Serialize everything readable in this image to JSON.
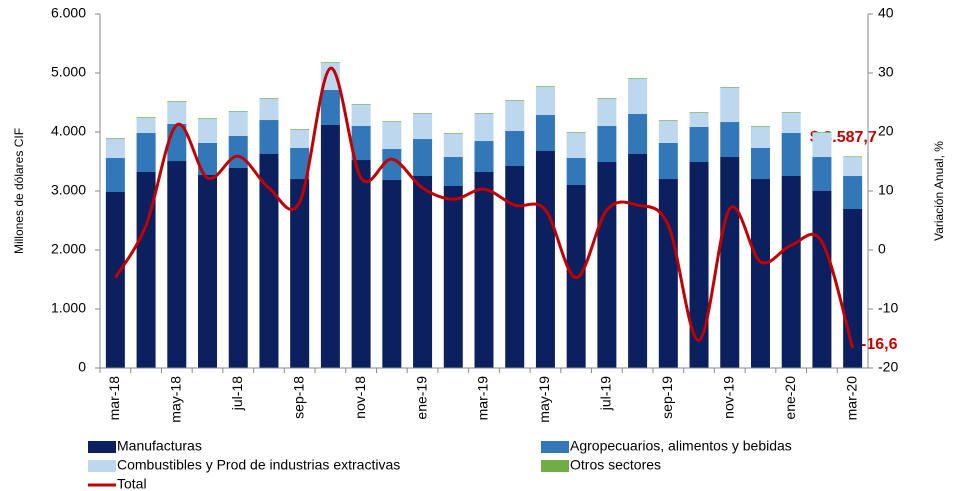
{
  "chart_data": {
    "type": "bar",
    "y_label": "Millones de dólares CIF",
    "y2_label": "Variación Anual, %",
    "categories": [
      "mar-18",
      null,
      "may-18",
      null,
      "jul-18",
      null,
      "sep-18",
      null,
      "nov-18",
      null,
      "ene-19",
      null,
      "mar-19",
      null,
      "may-19",
      null,
      "jul-19",
      null,
      "sep-19",
      null,
      "nov-19",
      null,
      "ene-20",
      null,
      "mar-20"
    ],
    "series": [
      {
        "name": "Manufacturas",
        "color": "#0c1f5e",
        "values": [
          2983,
          3322,
          3508,
          3271,
          3390,
          3627,
          3203,
          4119,
          3525,
          3186,
          3254,
          3085,
          3322,
          3424,
          3678,
          3102,
          3492,
          3627,
          3203,
          3492,
          3576,
          3203,
          3254,
          3000,
          2695
        ]
      },
      {
        "name": "Agropecuarios, alimentos y bebidas",
        "color": "#3277b8",
        "values": [
          576,
          661,
          628,
          543,
          542,
          576,
          526,
          593,
          577,
          526,
          627,
          491,
          525,
          593,
          610,
          457,
          610,
          678,
          611,
          593,
          593,
          526,
          729,
          576,
          559
        ]
      },
      {
        "name": "Combustibles y Prod de industrias extractivas",
        "color": "#bdd7ee",
        "values": [
          330,
          261,
          379,
          413,
          414,
          363,
          312,
          464,
          363,
          464,
          431,
          397,
          465,
          515,
          482,
          431,
          464,
          600,
          379,
          244,
          584,
          363,
          346,
          414,
          324
        ]
      },
      {
        "name": "Otros sectores",
        "color": "#70ad47",
        "values": [
          10,
          10,
          10,
          10,
          10,
          10,
          10,
          10,
          10,
          10,
          10,
          10,
          10,
          10,
          10,
          10,
          10,
          10,
          10,
          10,
          10,
          10,
          10,
          10,
          10
        ]
      },
      {
        "name": "Total",
        "color": "#c00000",
        "axis": "y2",
        "type": "line",
        "values": [
          -4.7,
          4.2,
          21.2,
          12.2,
          15.9,
          10.5,
          8.1,
          30.8,
          12.2,
          15.4,
          10.5,
          8.6,
          10.3,
          7.6,
          6.8,
          -4.7,
          6.8,
          7.6,
          4.2,
          -15.3,
          7.0,
          -2.0,
          0.8,
          1.4,
          -16.6
        ]
      }
    ],
    "annotations": [
      "$ 3.587,7",
      "-16,6"
    ],
    "ylim": [
      0,
      6000
    ],
    "yticks": [
      0,
      {
        "value": 1000,
        "label": "1.000"
      },
      {
        "value": 2000,
        "label": "2.000"
      },
      {
        "value": 3000,
        "label": "3.000"
      },
      {
        "value": 4000,
        "label": "4.000"
      },
      {
        "value": 5000,
        "label": "5.000"
      },
      {
        "value": 6000,
        "label": "6.000"
      }
    ],
    "y2lim": [
      -20,
      40
    ],
    "y2ticks": [
      -20,
      -10,
      0,
      10,
      20,
      30,
      40
    ]
  }
}
